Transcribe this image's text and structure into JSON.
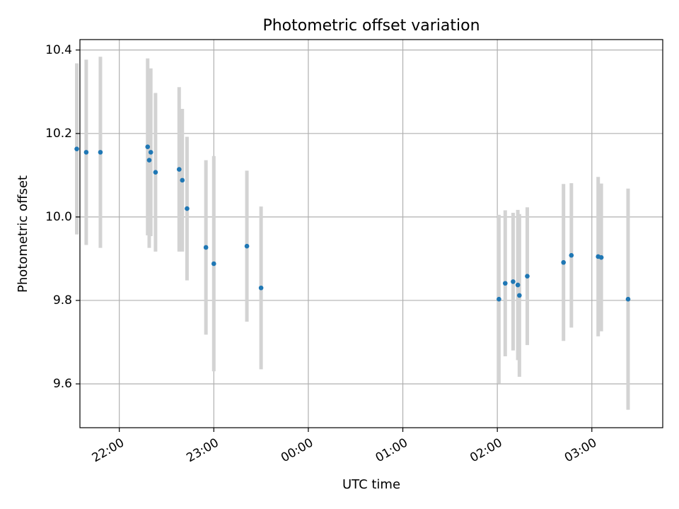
{
  "chart_data": {
    "type": "scatter",
    "title": "Photometric offset variation",
    "xlabel": "UTC time",
    "ylabel": "Photometric offset",
    "grid": true,
    "xlim": [
      "21:35",
      "03:45"
    ],
    "ylim": [
      9.495,
      10.425
    ],
    "x_ticks": [
      "22:00",
      "23:00",
      "00:00",
      "01:00",
      "02:00",
      "03:00"
    ],
    "y_ticks": [
      "9.6",
      "9.8",
      "10.0",
      "10.2",
      "10.4"
    ],
    "colors": {
      "points": "#1f77b4",
      "errorbars": "#d3d3d3",
      "grid": "#b0b0b0"
    },
    "series": [
      {
        "points": [
          {
            "x": "21:33",
            "y": 10.163,
            "err": 0.205
          },
          {
            "x": "21:39",
            "y": 10.155,
            "err": 0.222
          },
          {
            "x": "21:48",
            "y": 10.155,
            "err": 0.229
          },
          {
            "x": "22:18",
            "y": 10.168,
            "err": 0.212
          },
          {
            "x": "22:19",
            "y": 10.136,
            "err": 0.21
          },
          {
            "x": "22:20",
            "y": 10.155,
            "err": 0.201
          },
          {
            "x": "22:23",
            "y": 10.107,
            "err": 0.19
          },
          {
            "x": "22:38",
            "y": 10.114,
            "err": 0.197
          },
          {
            "x": "22:40",
            "y": 10.088,
            "err": 0.171
          },
          {
            "x": "22:43",
            "y": 10.02,
            "err": 0.172
          },
          {
            "x": "22:55",
            "y": 9.927,
            "err": 0.209
          },
          {
            "x": "23:00",
            "y": 9.888,
            "err": 0.258
          },
          {
            "x": "23:21",
            "y": 9.93,
            "err": 0.181
          },
          {
            "x": "23:30",
            "y": 9.83,
            "err": 0.195
          },
          {
            "x": "02:01",
            "y": 9.803,
            "err": 0.202
          },
          {
            "x": "02:05",
            "y": 9.841,
            "err": 0.175
          },
          {
            "x": "02:10",
            "y": 9.845,
            "err": 0.165
          },
          {
            "x": "02:13",
            "y": 9.837,
            "err": 0.18
          },
          {
            "x": "02:14",
            "y": 9.812,
            "err": 0.195
          },
          {
            "x": "02:19",
            "y": 9.858,
            "err": 0.165
          },
          {
            "x": "02:42",
            "y": 9.891,
            "err": 0.188
          },
          {
            "x": "02:47",
            "y": 9.908,
            "err": 0.173
          },
          {
            "x": "03:04",
            "y": 9.905,
            "err": 0.191
          },
          {
            "x": "03:06",
            "y": 9.903,
            "err": 0.177
          },
          {
            "x": "03:23",
            "y": 9.803,
            "err": 0.265
          }
        ]
      }
    ]
  }
}
